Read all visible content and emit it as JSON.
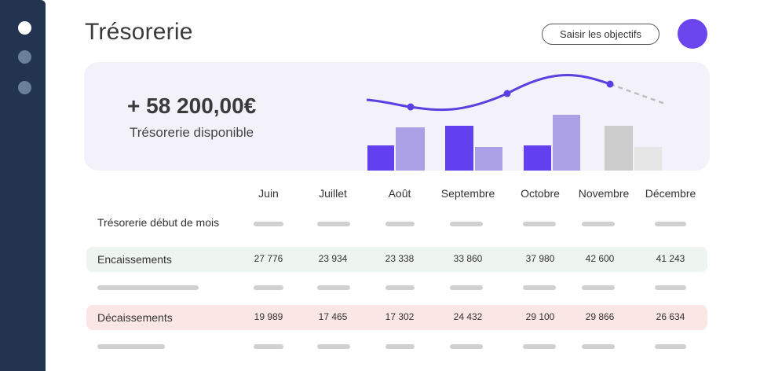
{
  "header": {
    "title": "Trésorerie",
    "objectives_button": "Saisir les objectifs"
  },
  "summary": {
    "amount": "+ 58 200,00€",
    "label": "Trésorerie disponible"
  },
  "colors": {
    "sidebar": "#22344f",
    "accent": "#6b45ee",
    "bar_dark": "#6340ef",
    "bar_light": "#ab9fe6",
    "bar_grey_dark": "#cccccc",
    "bar_grey_light": "#e6e6e6",
    "line": "#5b3fe0",
    "income_row": "#eef5f1",
    "expense_row": "#fbe6e6"
  },
  "icons": [
    "nav-dot-icon",
    "avatar"
  ],
  "table": {
    "months": [
      "Juin",
      "Juillet",
      "Août",
      "Septembre",
      "Octobre",
      "Novembre",
      "Décembre"
    ],
    "rows": {
      "start_of_month": {
        "label": "Trésorerie début de mois"
      },
      "income": {
        "label": "Encaissements",
        "values": [
          "27 776",
          "23 934",
          "23 338",
          "33 860",
          "37 980",
          "42 600",
          "41 243"
        ]
      },
      "expenses": {
        "label": "Décaissements",
        "values": [
          "19 989",
          "17 465",
          "17 302",
          "24 432",
          "29 100",
          "29 866",
          "26 634"
        ]
      }
    }
  }
}
